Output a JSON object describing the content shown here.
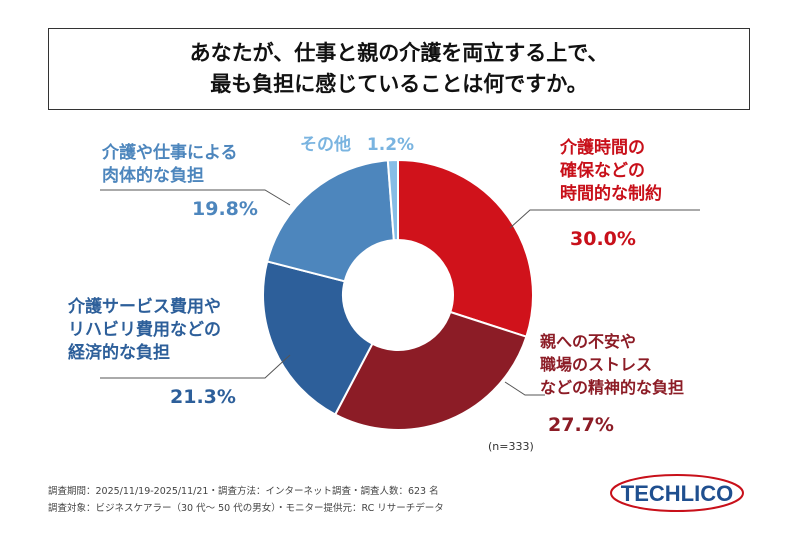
{
  "title_lines": [
    "あなたが、仕事と親の介護を両立する上で、",
    "最も負担に感じていることは何ですか。"
  ],
  "chart_data": {
    "type": "pie",
    "donut": true,
    "start": "top, clockwise",
    "slices": [
      {
        "label": "介護時間の確保などの時間的な制約",
        "label_lines": [
          "介護時間の",
          "確保などの",
          "時間的な制約"
        ],
        "value": 30.0,
        "value_text": "30.0%",
        "color": "#d0121b",
        "text_color": "#c8101a"
      },
      {
        "label": "親への不安や職場のストレスなどの精神的な負担",
        "label_lines": [
          "親への不安や",
          "職場のストレス",
          "などの精神的な負担"
        ],
        "value": 27.7,
        "value_text": "27.7%",
        "color": "#8c1c26",
        "text_color": "#8c1c26"
      },
      {
        "label": "介護サービス費用やリハビリ費用などの経済的な負担",
        "label_lines": [
          "介護サービス費用や",
          "リハビリ費用などの",
          "経済的な負担"
        ],
        "value": 21.3,
        "value_text": "21.3%",
        "color": "#2d5f9a",
        "text_color": "#2d5f9a"
      },
      {
        "label": "介護や仕事による肉体的な負担",
        "label_lines": [
          "介護や仕事による",
          "肉体的な負担"
        ],
        "value": 19.8,
        "value_text": "19.8%",
        "color": "#4d86bd",
        "text_color": "#4d86bd"
      },
      {
        "label": "その他",
        "label_lines": [
          "その他"
        ],
        "value": 1.2,
        "value_text": "1.2%",
        "color": "#86bde6",
        "text_color": "#7ab4e0"
      }
    ],
    "sample_size": "(n=333)"
  },
  "footer": {
    "line1": "調査期間：2025/11/19-2025/11/21・調査方法：インターネット調査・調査人数：623 名",
    "line2": "調査対象：ビジネスケアラー（30 代～ 50 代の男女）・モニター提供元：RC リサーチデータ"
  },
  "logo": {
    "text": "TECHLICO",
    "text_color": "#1f4f8f",
    "ring_color": "#c8101a"
  }
}
